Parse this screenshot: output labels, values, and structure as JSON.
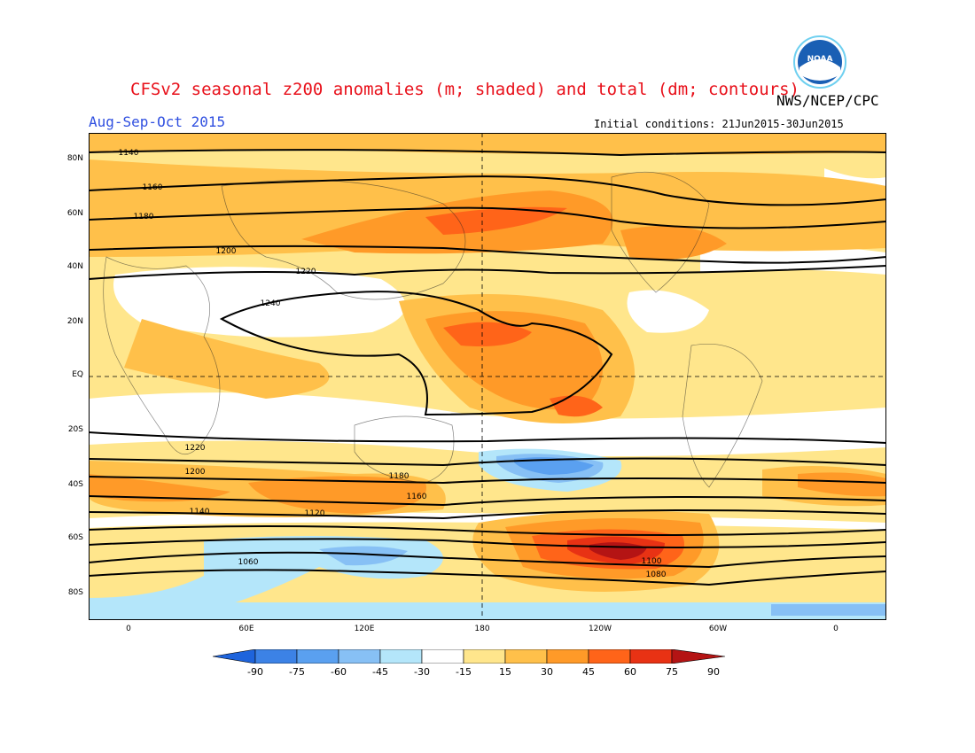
{
  "title": "CFSv2 seasonal z200 anomalies (m; shaded) and total (dm; contours)",
  "period": "Aug-Sep-Oct 2015",
  "agency": "NWS/NCEP/CPC",
  "initial_conditions": "Initial conditions: 21Jun2015-30Jun2015",
  "logo": {
    "icon": "noaa-logo-icon",
    "text": "NOAA",
    "color": "#1a5fb4"
  },
  "lat_labels": [
    "80N",
    "60N",
    "40N",
    "20N",
    "EQ",
    "20S",
    "40S",
    "60S",
    "80S"
  ],
  "lon_labels": [
    "0",
    "60E",
    "120E",
    "180",
    "120W",
    "60W",
    "0"
  ],
  "colorbar": {
    "levels": [
      "-90",
      "-75",
      "-60",
      "-45",
      "-30",
      "-15",
      "15",
      "30",
      "45",
      "60",
      "75",
      "90"
    ],
    "colors": [
      "#1e64dc",
      "#3c82e6",
      "#5aa0f0",
      "#87c0f5",
      "#b4e6fa",
      "#ffffff",
      "#ffe68c",
      "#ffc04a",
      "#ff9a28",
      "#ff6419",
      "#e83214",
      "#b41414"
    ]
  },
  "contour_labels": [
    "1140",
    "1160",
    "1180",
    "1200",
    "1220",
    "1240",
    "1220",
    "1200",
    "1180",
    "1160",
    "1140",
    "1120",
    "1100",
    "1080",
    "1060"
  ]
}
